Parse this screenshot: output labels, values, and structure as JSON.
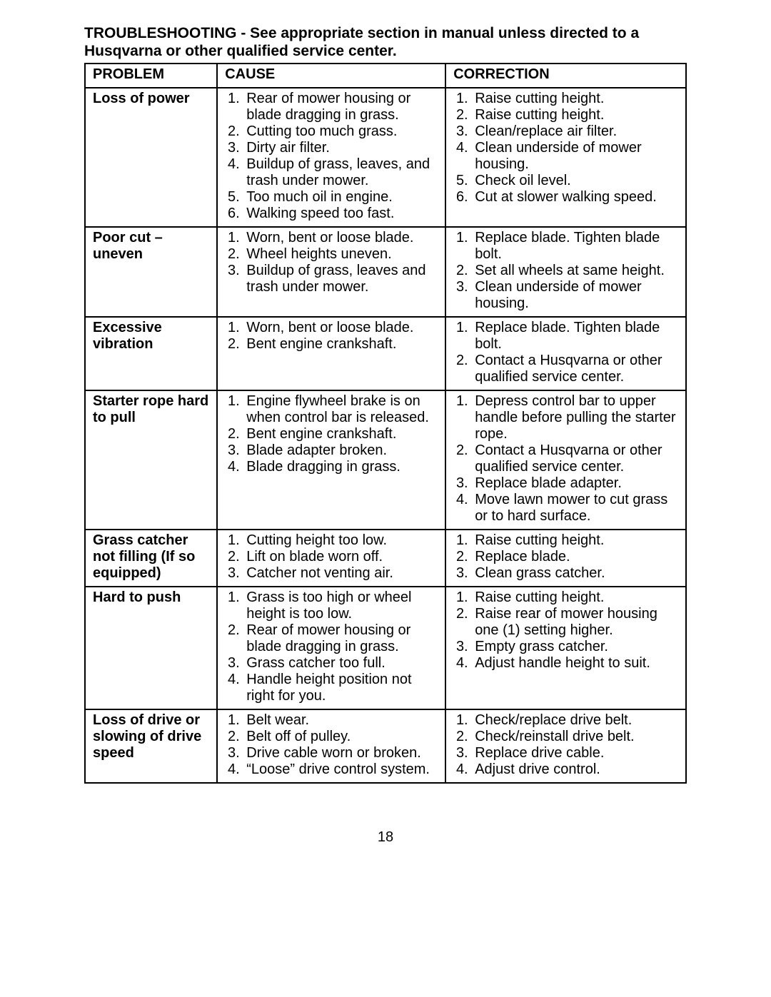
{
  "title": "TROUBLESHOOTING - See appropriate section in manual unless directed to a Husqvarna or other qualified service center.",
  "headers": {
    "problem": "PROBLEM",
    "cause": "CAUSE",
    "correction": "CORRECTION"
  },
  "page_number": "18",
  "rows": [
    {
      "problem": "Loss of power",
      "causes": [
        "Rear of mower housing or blade dragging in grass.",
        "Cutting too much grass.",
        "Dirty air filter.",
        "Buildup of grass, leaves, and trash under mower.",
        "Too much oil in engine.",
        "Walking speed too fast."
      ],
      "corrections": [
        "Raise cutting height.",
        "Raise cutting height.",
        "Clean/replace air filter.",
        "Clean underside of mower housing.",
        "Check oil level.",
        "Cut at slower walking speed."
      ]
    },
    {
      "problem": "Poor cut – uneven",
      "causes": [
        "Worn, bent or loose blade.",
        "Wheel heights uneven.",
        "Buildup of grass, leaves and trash under mower."
      ],
      "corrections": [
        "Replace blade. Tighten blade bolt.",
        "Set all wheels at same height.",
        "Clean underside of mower housing."
      ]
    },
    {
      "problem": "Excessive vibration",
      "causes": [
        "Worn, bent or loose blade.",
        "Bent engine crankshaft."
      ],
      "corrections": [
        "Replace blade. Tighten blade bolt.",
        "Contact a Husqvarna or other qualified service center."
      ]
    },
    {
      "problem": "Starter rope hard to pull",
      "causes": [
        "Engine flywheel brake is on when control bar is released.",
        "Bent engine crankshaft.",
        "Blade adapter broken.",
        "Blade dragging in grass."
      ],
      "corrections": [
        "Depress control bar to upper handle before pulling the starter rope.",
        "Contact a Husqvarna or other qualified service center.",
        "Replace blade adapter.",
        "Move lawn mower to cut grass or to hard surface."
      ]
    },
    {
      "problem": "Grass catcher not filling (If so equipped)",
      "causes": [
        "Cutting height too low.",
        "Lift on blade worn off.",
        "Catcher not venting air."
      ],
      "corrections": [
        "Raise cutting height.",
        "Replace blade.",
        "Clean grass catcher."
      ]
    },
    {
      "problem": "Hard to push",
      "causes": [
        "Grass is too high or wheel height is too low.",
        "Rear of mower housing or blade dragging in grass.",
        "Grass catcher too full.",
        "Handle height position not right for you."
      ],
      "corrections": [
        "Raise cutting height.",
        "Raise rear of mower housing one (1) setting higher.",
        "Empty grass catcher.",
        "Adjust handle height to suit."
      ]
    },
    {
      "problem": "Loss of drive or slowing of drive speed",
      "causes": [
        "Belt wear.",
        "Belt off of pulley.",
        "Drive cable worn or broken.",
        "“Loose” drive control system."
      ],
      "corrections": [
        "Check/replace drive belt.",
        "Check/reinstall drive belt.",
        "Replace drive cable.",
        "Adjust drive control."
      ]
    }
  ]
}
